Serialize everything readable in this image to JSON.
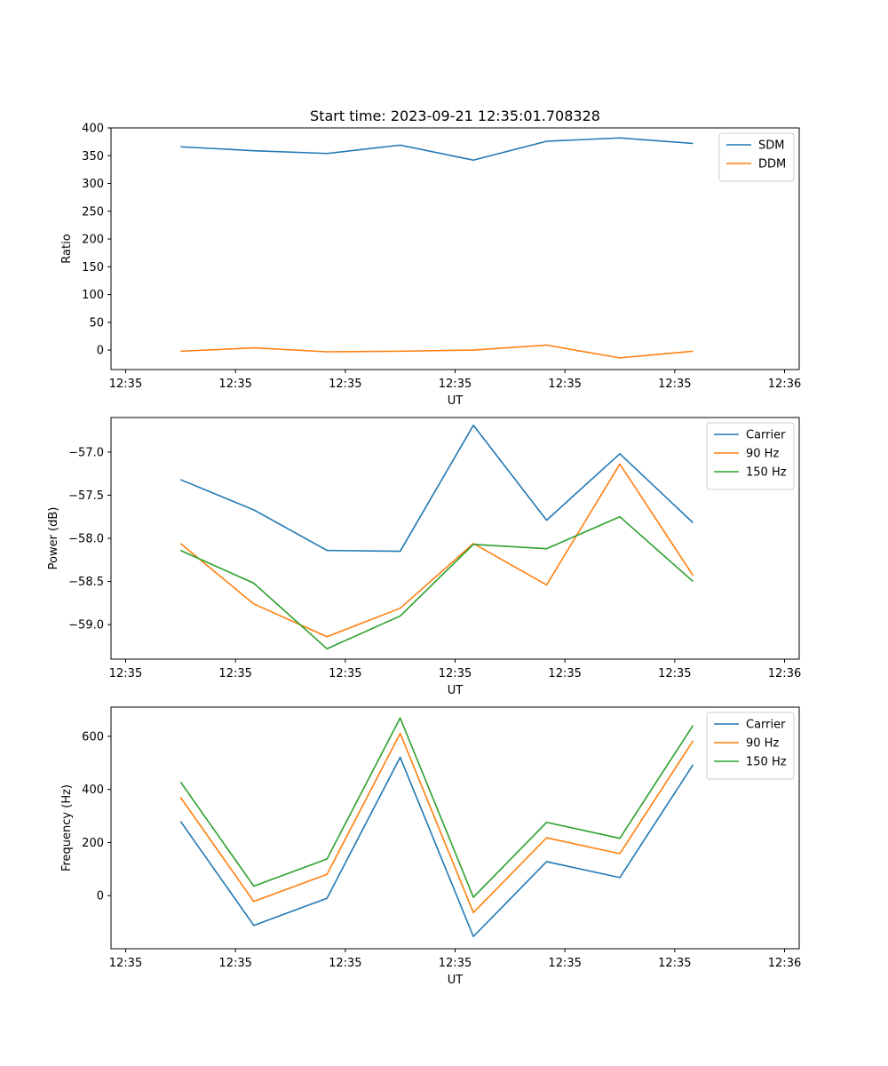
{
  "chart_data": [
    {
      "type": "line",
      "title": "Start time: 2023-09-21 12:35:01.708328",
      "xlabel": "UT",
      "ylabel": "Ratio",
      "xlim": [
        -0.2,
        9.2
      ],
      "ylim": [
        -35,
        400
      ],
      "x_tick_positions": [
        0,
        1.5,
        3,
        4.5,
        6,
        7.5,
        9
      ],
      "x_tick_labels": [
        "12:35",
        "12:35",
        "12:35",
        "12:35",
        "12:35",
        "12:35",
        "12:36"
      ],
      "y_ticks": [
        0,
        50,
        100,
        150,
        200,
        250,
        300,
        350,
        400
      ],
      "y_tick_labels": [
        "0",
        "50",
        "100",
        "150",
        "200",
        "250",
        "300",
        "350",
        "400"
      ],
      "legend_position": "top-right",
      "x": [
        0.75,
        1.75,
        2.75,
        3.75,
        4.75,
        5.75,
        6.75,
        7.75
      ],
      "series": [
        {
          "name": "SDM",
          "color": "#1f77b4",
          "values": [
            366,
            359,
            354,
            369,
            342,
            376,
            382,
            372
          ]
        },
        {
          "name": "DDM",
          "color": "#ff7f0e",
          "values": [
            -2,
            4,
            -3,
            -2,
            0,
            9,
            -14,
            -2
          ]
        }
      ]
    },
    {
      "type": "line",
      "title": "",
      "xlabel": "UT",
      "ylabel": "Power (dB)",
      "xlim": [
        -0.2,
        9.2
      ],
      "ylim": [
        -59.4,
        -56.6
      ],
      "x_tick_positions": [
        0,
        1.5,
        3,
        4.5,
        6,
        7.5,
        9
      ],
      "x_tick_labels": [
        "12:35",
        "12:35",
        "12:35",
        "12:35",
        "12:35",
        "12:35",
        "12:36"
      ],
      "y_ticks": [
        -59.0,
        -58.5,
        -58.0,
        -57.5,
        -57.0
      ],
      "y_tick_labels": [
        "−59.0",
        "−58.5",
        "−58.0",
        "−57.5",
        "−57.0"
      ],
      "legend_position": "top-right",
      "x": [
        0.75,
        1.75,
        2.75,
        3.75,
        4.75,
        5.75,
        6.75,
        7.75
      ],
      "series": [
        {
          "name": "Carrier",
          "color": "#1f77b4",
          "values": [
            -57.32,
            -57.67,
            -58.14,
            -58.15,
            -56.69,
            -57.79,
            -57.02,
            -57.82
          ]
        },
        {
          "name": "90 Hz",
          "color": "#ff7f0e",
          "values": [
            -58.06,
            -58.76,
            -59.14,
            -58.81,
            -58.06,
            -58.54,
            -57.14,
            -58.43
          ]
        },
        {
          "name": "150 Hz",
          "color": "#2ca02c",
          "values": [
            -58.14,
            -58.52,
            -59.28,
            -58.9,
            -58.07,
            -58.12,
            -57.75,
            -58.5
          ]
        }
      ]
    },
    {
      "type": "line",
      "title": "",
      "xlabel": "UT",
      "ylabel": "Frequency (Hz)",
      "xlim": [
        -0.2,
        9.2
      ],
      "ylim": [
        -200,
        710
      ],
      "x_tick_positions": [
        0,
        1.5,
        3,
        4.5,
        6,
        7.5,
        9
      ],
      "x_tick_labels": [
        "12:35",
        "12:35",
        "12:35",
        "12:35",
        "12:35",
        "12:35",
        "12:36"
      ],
      "y_ticks": [
        0,
        200,
        400,
        600
      ],
      "y_tick_labels": [
        "0",
        "200",
        "400",
        "600"
      ],
      "legend_position": "top-right",
      "x": [
        0.75,
        1.75,
        2.75,
        3.75,
        4.75,
        5.75,
        6.75,
        7.75
      ],
      "series": [
        {
          "name": "Carrier",
          "color": "#1f77b4",
          "values": [
            280,
            -112,
            -10,
            521,
            -154,
            128,
            68,
            493
          ]
        },
        {
          "name": "90 Hz",
          "color": "#ff7f0e",
          "values": [
            370,
            -22,
            80,
            611,
            -64,
            218,
            158,
            583
          ]
        },
        {
          "name": "150 Hz",
          "color": "#2ca02c",
          "values": [
            428,
            36,
            138,
            669,
            -6,
            276,
            216,
            641
          ]
        }
      ]
    }
  ]
}
